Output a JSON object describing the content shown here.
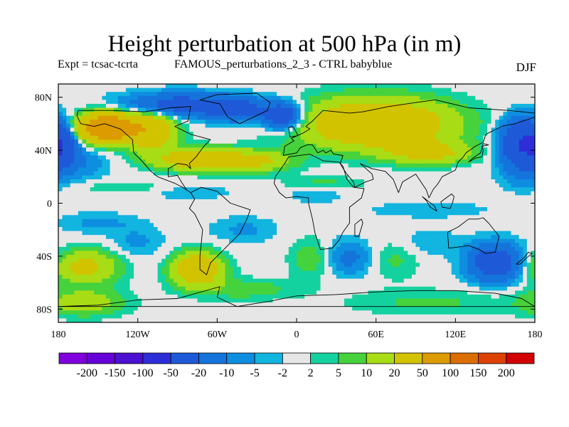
{
  "chart_data": {
    "type": "heatmap",
    "title": "Height perturbation at 500 hPa (in m)",
    "subtitle_left": "Expt = tcsac-tcrta",
    "subtitle_center": "FAMOUS_perturbations_2_3 - CTRL babyblue",
    "season": "DJF",
    "x_range": [
      -180,
      180
    ],
    "y_range": [
      -90,
      90
    ],
    "x_ticks": [
      {
        "value": -180,
        "label": "180"
      },
      {
        "value": -120,
        "label": "120W"
      },
      {
        "value": -60,
        "label": "60W"
      },
      {
        "value": 0,
        "label": "0"
      },
      {
        "value": 60,
        "label": "60E"
      },
      {
        "value": 120,
        "label": "120E"
      },
      {
        "value": 180,
        "label": "180"
      }
    ],
    "y_ticks": [
      {
        "value": 80,
        "label": "80N"
      },
      {
        "value": 40,
        "label": "40N"
      },
      {
        "value": 0,
        "label": "0"
      },
      {
        "value": -40,
        "label": "40S"
      },
      {
        "value": -80,
        "label": "80S"
      }
    ],
    "colorbar": {
      "colors": [
        "#7f00dc",
        "#6600d8",
        "#4c10d0",
        "#2e2ed8",
        "#1e5ad8",
        "#1474dc",
        "#0e8ee0",
        "#12b4e0",
        "#e6e6e6",
        "#14d2a0",
        "#46d23c",
        "#a8dc14",
        "#d2c300",
        "#dc9b00",
        "#dc6e00",
        "#dc4100",
        "#d20000"
      ],
      "levels": [
        "-200",
        "-150",
        "-100",
        "-50",
        "-20",
        "-10",
        "-5",
        "-2",
        "2",
        "5",
        "10",
        "20",
        "50",
        "100",
        "150",
        "200"
      ]
    },
    "features": [
      {
        "lon": -143,
        "lat": 57,
        "value": 100,
        "sx": 20,
        "sy": 10
      },
      {
        "lon": -110,
        "lat": 55,
        "value": 40,
        "sx": 18,
        "sy": 14
      },
      {
        "lon": -78,
        "lat": 33,
        "value": 30,
        "sx": 30,
        "sy": 8
      },
      {
        "lon": -35,
        "lat": 32,
        "value": 25,
        "sx": 30,
        "sy": 8
      },
      {
        "lon": -90,
        "lat": 74,
        "value": -30,
        "sx": 40,
        "sy": 9
      },
      {
        "lon": -45,
        "lat": 71,
        "value": -30,
        "sx": 20,
        "sy": 9
      },
      {
        "lon": -10,
        "lat": 66,
        "value": -40,
        "sx": 15,
        "sy": 10
      },
      {
        "lon": -178,
        "lat": 44,
        "value": -40,
        "sx": 12,
        "sy": 16
      },
      {
        "lon": -160,
        "lat": 30,
        "value": -8,
        "sx": 18,
        "sy": 12
      },
      {
        "lon": 60,
        "lat": 60,
        "value": 45,
        "sx": 55,
        "sy": 18
      },
      {
        "lon": 100,
        "lat": 38,
        "value": 25,
        "sx": 30,
        "sy": 8
      },
      {
        "lon": 168,
        "lat": 45,
        "value": -40,
        "sx": 15,
        "sy": 18
      },
      {
        "lon": 170,
        "lat": 20,
        "value": -5,
        "sx": 18,
        "sy": 12
      },
      {
        "lon": -130,
        "lat": 12,
        "value": 6,
        "sx": 30,
        "sy": 4
      },
      {
        "lon": 20,
        "lat": 15,
        "value": 6,
        "sx": 30,
        "sy": 5
      },
      {
        "lon": -80,
        "lat": 8,
        "value": -4,
        "sx": 35,
        "sy": 6
      },
      {
        "lon": 15,
        "lat": 6,
        "value": -5,
        "sx": 20,
        "sy": 6
      },
      {
        "lon": 100,
        "lat": -5,
        "value": -5,
        "sx": 45,
        "sy": 6
      },
      {
        "lon": -150,
        "lat": -15,
        "value": -6,
        "sx": 30,
        "sy": 8
      },
      {
        "lon": -160,
        "lat": -48,
        "value": 25,
        "sx": 25,
        "sy": 12
      },
      {
        "lon": -75,
        "lat": -50,
        "value": 40,
        "sx": 18,
        "sy": 12
      },
      {
        "lon": -120,
        "lat": -30,
        "value": -6,
        "sx": 20,
        "sy": 12
      },
      {
        "lon": -40,
        "lat": -20,
        "value": -6,
        "sx": 25,
        "sy": 10
      },
      {
        "lon": 40,
        "lat": -40,
        "value": -10,
        "sx": 16,
        "sy": 13
      },
      {
        "lon": 40,
        "lat": -45,
        "value": -3,
        "sx": 15,
        "sy": 12
      },
      {
        "lon": 10,
        "lat": -42,
        "value": 8,
        "sx": 15,
        "sy": 15
      },
      {
        "lon": 75,
        "lat": -42,
        "value": 6,
        "sx": 18,
        "sy": 15
      },
      {
        "lon": 150,
        "lat": -45,
        "value": -35,
        "sx": 20,
        "sy": 14
      },
      {
        "lon": 100,
        "lat": -30,
        "value": -5,
        "sx": 25,
        "sy": 10
      },
      {
        "lon": -40,
        "lat": -65,
        "value": 8,
        "sx": 40,
        "sy": 8
      },
      {
        "lon": -160,
        "lat": -75,
        "value": 15,
        "sx": 30,
        "sy": 10
      },
      {
        "lon": 100,
        "lat": -75,
        "value": 6,
        "sx": 60,
        "sy": 10
      }
    ]
  },
  "map_outline": {
    "Greenland": [
      [
        -73,
        78
      ],
      [
        -60,
        82
      ],
      [
        -30,
        83
      ],
      [
        -20,
        76
      ],
      [
        -22,
        70
      ],
      [
        -43,
        60
      ],
      [
        -52,
        65
      ],
      [
        -58,
        75
      ]
    ],
    "North America": [
      [
        -165,
        70
      ],
      [
        -140,
        70
      ],
      [
        -115,
        69
      ],
      [
        -95,
        72
      ],
      [
        -80,
        73
      ],
      [
        -82,
        62
      ],
      [
        -92,
        58
      ],
      [
        -80,
        52
      ],
      [
        -65,
        48
      ],
      [
        -70,
        43
      ],
      [
        -76,
        35
      ],
      [
        -81,
        30
      ],
      [
        -80,
        26
      ],
      [
        -83,
        29
      ],
      [
        -90,
        30
      ],
      [
        -97,
        26
      ],
      [
        -97,
        20
      ],
      [
        -90,
        21
      ],
      [
        -87,
        16
      ],
      [
        -83,
        10
      ],
      [
        -80,
        8
      ],
      [
        -86,
        12
      ],
      [
        -92,
        15
      ],
      [
        -105,
        20
      ],
      [
        -110,
        24
      ],
      [
        -117,
        32
      ],
      [
        -123,
        38
      ],
      [
        -124,
        48
      ],
      [
        -133,
        56
      ],
      [
        -145,
        60
      ],
      [
        -153,
        58
      ],
      [
        -163,
        60
      ],
      [
        -166,
        66
      ]
    ],
    "South America": [
      [
        -80,
        8
      ],
      [
        -72,
        12
      ],
      [
        -60,
        9
      ],
      [
        -50,
        0
      ],
      [
        -35,
        -5
      ],
      [
        -38,
        -13
      ],
      [
        -43,
        -23
      ],
      [
        -48,
        -28
      ],
      [
        -58,
        -38
      ],
      [
        -65,
        -45
      ],
      [
        -68,
        -54
      ],
      [
        -73,
        -50
      ],
      [
        -73,
        -40
      ],
      [
        -71,
        -20
      ],
      [
        -77,
        -8
      ],
      [
        -81,
        -4
      ],
      [
        -77,
        3
      ]
    ],
    "Eurasia": [
      [
        -10,
        36
      ],
      [
        -9,
        43
      ],
      [
        -2,
        47
      ],
      [
        -4,
        49
      ],
      [
        5,
        53
      ],
      [
        10,
        56
      ],
      [
        7,
        58
      ],
      [
        12,
        62
      ],
      [
        20,
        70
      ],
      [
        40,
        68
      ],
      [
        50,
        69
      ],
      [
        70,
        73
      ],
      [
        90,
        76
      ],
      [
        105,
        78
      ],
      [
        130,
        72
      ],
      [
        160,
        70
      ],
      [
        180,
        68
      ],
      [
        180,
        65
      ],
      [
        165,
        60
      ],
      [
        155,
        58
      ],
      [
        143,
        52
      ],
      [
        141,
        46
      ],
      [
        135,
        43
      ],
      [
        128,
        38
      ],
      [
        126,
        35
      ],
      [
        122,
        31
      ],
      [
        120,
        25
      ],
      [
        110,
        20
      ],
      [
        107,
        15
      ],
      [
        103,
        10
      ],
      [
        100,
        4
      ],
      [
        98,
        10
      ],
      [
        94,
        16
      ],
      [
        90,
        22
      ],
      [
        80,
        16
      ],
      [
        77,
        8
      ],
      [
        73,
        18
      ],
      [
        67,
        24
      ],
      [
        57,
        26
      ],
      [
        50,
        29
      ],
      [
        48,
        30
      ],
      [
        57,
        22
      ],
      [
        58,
        18
      ],
      [
        52,
        16
      ],
      [
        44,
        12
      ],
      [
        43,
        16
      ],
      [
        38,
        22
      ],
      [
        34,
        28
      ],
      [
        33,
        30
      ],
      [
        35,
        36
      ],
      [
        28,
        37
      ],
      [
        26,
        40
      ],
      [
        22,
        38
      ],
      [
        20,
        40
      ],
      [
        16,
        38
      ],
      [
        12,
        44
      ],
      [
        8,
        44
      ],
      [
        3,
        42
      ],
      [
        0,
        38
      ]
    ],
    "Africa": [
      [
        -17,
        15
      ],
      [
        -16,
        20
      ],
      [
        -9,
        30
      ],
      [
        -6,
        35
      ],
      [
        10,
        37
      ],
      [
        20,
        32
      ],
      [
        32,
        31
      ],
      [
        35,
        28
      ],
      [
        38,
        18
      ],
      [
        43,
        12
      ],
      [
        51,
        11
      ],
      [
        49,
        4
      ],
      [
        40,
        -3
      ],
      [
        40,
        -15
      ],
      [
        35,
        -22
      ],
      [
        32,
        -28
      ],
      [
        27,
        -34
      ],
      [
        18,
        -35
      ],
      [
        14,
        -23
      ],
      [
        12,
        -12
      ],
      [
        9,
        0
      ],
      [
        9,
        4
      ],
      [
        0,
        5
      ],
      [
        -8,
        4
      ],
      [
        -13,
        8
      ]
    ],
    "Australia": [
      [
        114,
        -22
      ],
      [
        122,
        -18
      ],
      [
        130,
        -12
      ],
      [
        137,
        -12
      ],
      [
        141,
        -11
      ],
      [
        145,
        -15
      ],
      [
        153,
        -25
      ],
      [
        150,
        -37
      ],
      [
        143,
        -38
      ],
      [
        138,
        -35
      ],
      [
        130,
        -32
      ],
      [
        115,
        -34
      ]
    ],
    "Antarctica": [
      [
        -180,
        -78
      ],
      [
        -150,
        -77
      ],
      [
        -120,
        -73
      ],
      [
        -90,
        -72
      ],
      [
        -65,
        -65
      ],
      [
        -58,
        -63
      ],
      [
        -60,
        -71
      ],
      [
        -45,
        -78
      ],
      [
        -20,
        -74
      ],
      [
        0,
        -70
      ],
      [
        30,
        -69
      ],
      [
        60,
        -67
      ],
      [
        90,
        -66
      ],
      [
        120,
        -66
      ],
      [
        150,
        -68
      ],
      [
        170,
        -72
      ],
      [
        180,
        -78
      ]
    ],
    "Great Britain": [
      [
        -5,
        50
      ],
      [
        1,
        51
      ],
      [
        -1,
        55
      ],
      [
        -3,
        58
      ],
      [
        -6,
        57
      ]
    ],
    "Japan": [
      [
        130,
        31
      ],
      [
        135,
        34
      ],
      [
        140,
        35
      ],
      [
        141,
        40
      ],
      [
        140,
        43
      ],
      [
        145,
        44
      ],
      [
        141,
        45
      ],
      [
        139,
        38
      ],
      [
        133,
        34
      ]
    ],
    "Madagascar": [
      [
        44,
        -25
      ],
      [
        47,
        -25
      ],
      [
        50,
        -15
      ],
      [
        49,
        -12
      ],
      [
        44,
        -16
      ]
    ],
    "Borneo": [
      [
        109,
        1
      ],
      [
        117,
        7
      ],
      [
        119,
        5
      ],
      [
        118,
        1
      ],
      [
        116,
        -4
      ],
      [
        110,
        -3
      ]
    ],
    "Sumatra": [
      [
        95,
        5
      ],
      [
        104,
        -2
      ],
      [
        106,
        -6
      ],
      [
        101,
        -3
      ],
      [
        98,
        2
      ]
    ],
    "New Zealand": [
      [
        166,
        -46
      ],
      [
        172,
        -41
      ],
      [
        175,
        -37
      ],
      [
        178,
        -38
      ],
      [
        174,
        -41
      ],
      [
        169,
        -46
      ]
    ]
  }
}
